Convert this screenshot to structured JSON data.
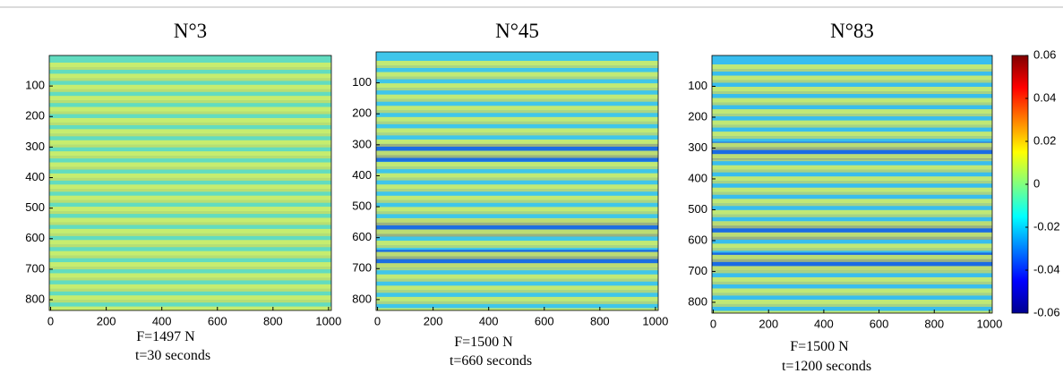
{
  "chart_data": [
    {
      "type": "image",
      "title": "N°3",
      "xlim": [
        -5,
        1010
      ],
      "ylim": [
        0,
        835
      ],
      "y_inverted": true,
      "xticks": [
        0,
        200,
        400,
        600,
        800,
        1000
      ],
      "yticks": [
        100,
        200,
        300,
        400,
        500,
        600,
        700,
        800
      ],
      "caption": [
        "F=1497 N",
        "t=30 seconds"
      ]
    },
    {
      "type": "image",
      "title": "N°45",
      "xlim": [
        -5,
        1010
      ],
      "ylim": [
        0,
        835
      ],
      "y_inverted": true,
      "xticks": [
        0,
        200,
        400,
        600,
        800,
        1000
      ],
      "yticks": [
        100,
        200,
        300,
        400,
        500,
        600,
        700,
        800
      ],
      "caption": [
        "F=1500 N",
        "t=660 seconds"
      ]
    },
    {
      "type": "image",
      "title": "N°83",
      "xlim": [
        -5,
        1010
      ],
      "ylim": [
        0,
        835
      ],
      "y_inverted": true,
      "xticks": [
        0,
        200,
        400,
        600,
        800,
        1000
      ],
      "yticks": [
        100,
        200,
        300,
        400,
        500,
        600,
        700,
        800
      ],
      "caption": [
        "F=1500 N",
        "t=1200 seconds"
      ]
    },
    {
      "type": "colorbar",
      "clim": [
        -0.06,
        0.06
      ],
      "ticks": [
        0.06,
        0.04,
        0.02,
        0,
        -0.02,
        -0.04,
        -0.06
      ]
    }
  ]
}
